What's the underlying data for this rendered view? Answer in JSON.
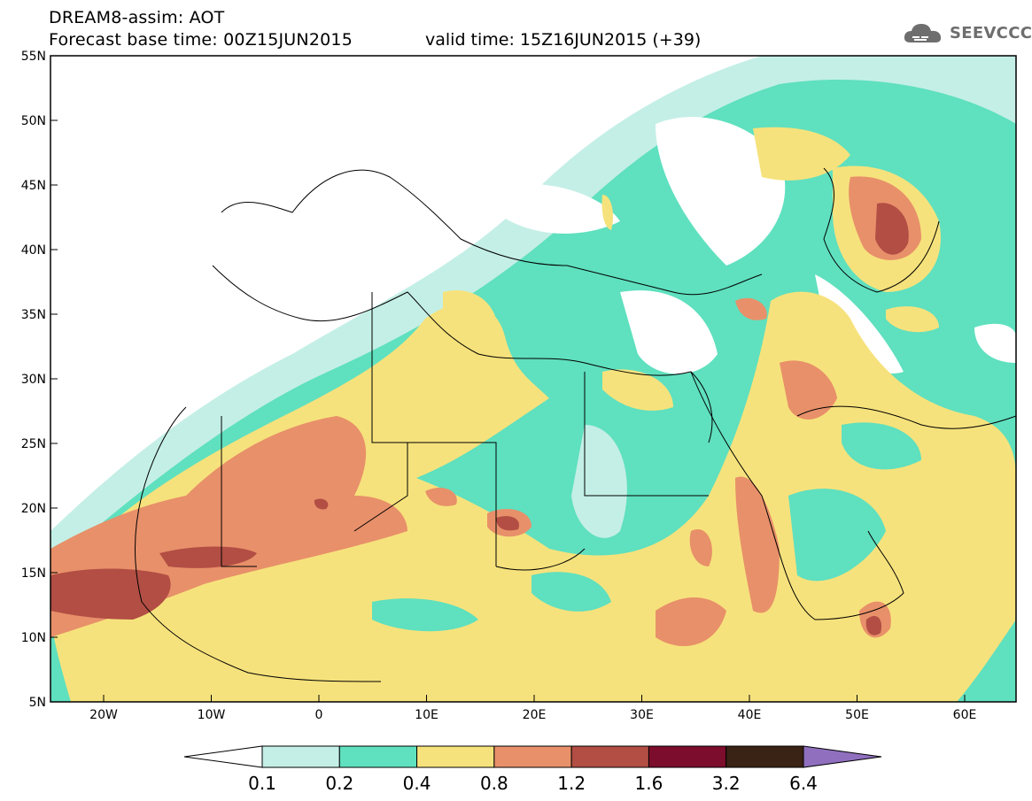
{
  "header": {
    "title": "DREAM8-assim: AOT",
    "base_time": "Forecast base time: 00Z15JUN2015",
    "valid_time": "valid time: 15Z16JUN2015 (+39)"
  },
  "logo": {
    "text": "SEEVCCC",
    "icon": "cloud-logo-icon"
  },
  "axes": {
    "lon_ticks": [
      "20W",
      "10W",
      "0",
      "10E",
      "20E",
      "30E",
      "40E",
      "50E",
      "60E"
    ],
    "lat_ticks": [
      "55N",
      "50N",
      "45N",
      "40N",
      "35N",
      "30N",
      "25N",
      "20N",
      "15N",
      "10N",
      "5N"
    ]
  },
  "colorbar": {
    "labels": [
      "0.1",
      "0.2",
      "0.4",
      "0.8",
      "1.2",
      "1.6",
      "3.2",
      "6.4"
    ],
    "colors": [
      "#ffffff",
      "#c4efe6",
      "#5fe0bf",
      "#f6e27c",
      "#e8906a",
      "#b24e44",
      "#7d0d2c",
      "#3a2214",
      "#8f6fbe"
    ]
  },
  "map_colors": {
    "aot_0_1": "#c4efe6",
    "aot_0_2": "#5fe0bf",
    "aot_0_4": "#f6e27c",
    "aot_0_8": "#e8906a",
    "aot_1_2": "#b24e44",
    "aot_1_6": "#7d0d2c"
  }
}
